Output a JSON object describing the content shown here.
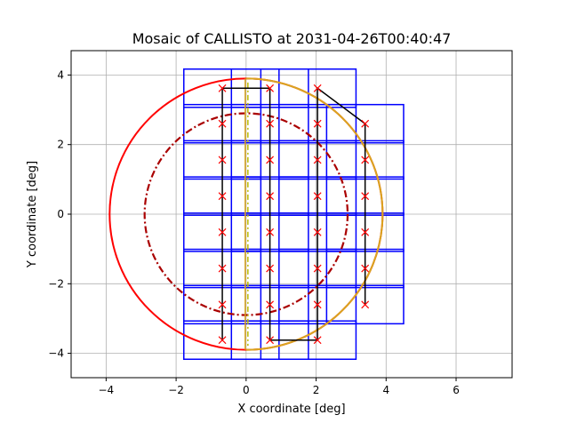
{
  "chart_data": {
    "type": "scatter",
    "title": "Mosaic of CALLISTO at 2031-04-26T00:40:47",
    "xlabel": "X coordinate [deg]",
    "ylabel": "Y coordinate [deg]",
    "xlim": [
      -5.0,
      7.6
    ],
    "ylim": [
      -4.7,
      4.7
    ],
    "xticks": [
      -4,
      -2,
      0,
      2,
      4,
      6
    ],
    "yticks": [
      -4,
      -2,
      0,
      2,
      4
    ],
    "grid": true,
    "colors": {
      "limb": "#ff0000",
      "inner_limb": "#aa0000",
      "tiles": "#0000ff",
      "path": "#000000",
      "pointings": "#ff0000",
      "terminator": "#daa520",
      "terminator_inner": "#bbbb00",
      "grid": "#b0b0b0"
    },
    "limb_circle": {
      "cx": 0,
      "cy": 0,
      "r": 3.9
    },
    "inner_circle": {
      "cx": 0,
      "cy": 0,
      "r": 2.9
    },
    "terminator": {
      "rx": 3.9,
      "ry": 3.9,
      "inner_rx": 0.15,
      "inner_ry": 3.9
    },
    "pointings": {
      "columns_x": [
        -0.68,
        0.68,
        2.04,
        3.4
      ],
      "rows_y": [
        3.62,
        2.6,
        1.56,
        0.52,
        -0.52,
        -1.56,
        -2.6,
        -3.62
      ],
      "last_column_rows_y": [
        2.6,
        1.56,
        0.52,
        -0.52,
        -1.56,
        -2.6
      ]
    },
    "tile": {
      "width": 2.2,
      "height": 1.1
    },
    "scan_path": [
      [
        -0.68,
        -3.62
      ],
      [
        -0.68,
        3.62
      ],
      [
        0.68,
        3.62
      ],
      [
        0.68,
        -3.62
      ],
      [
        2.04,
        -3.62
      ],
      [
        2.04,
        3.62
      ],
      [
        3.4,
        2.6
      ],
      [
        3.4,
        -2.6
      ]
    ]
  }
}
